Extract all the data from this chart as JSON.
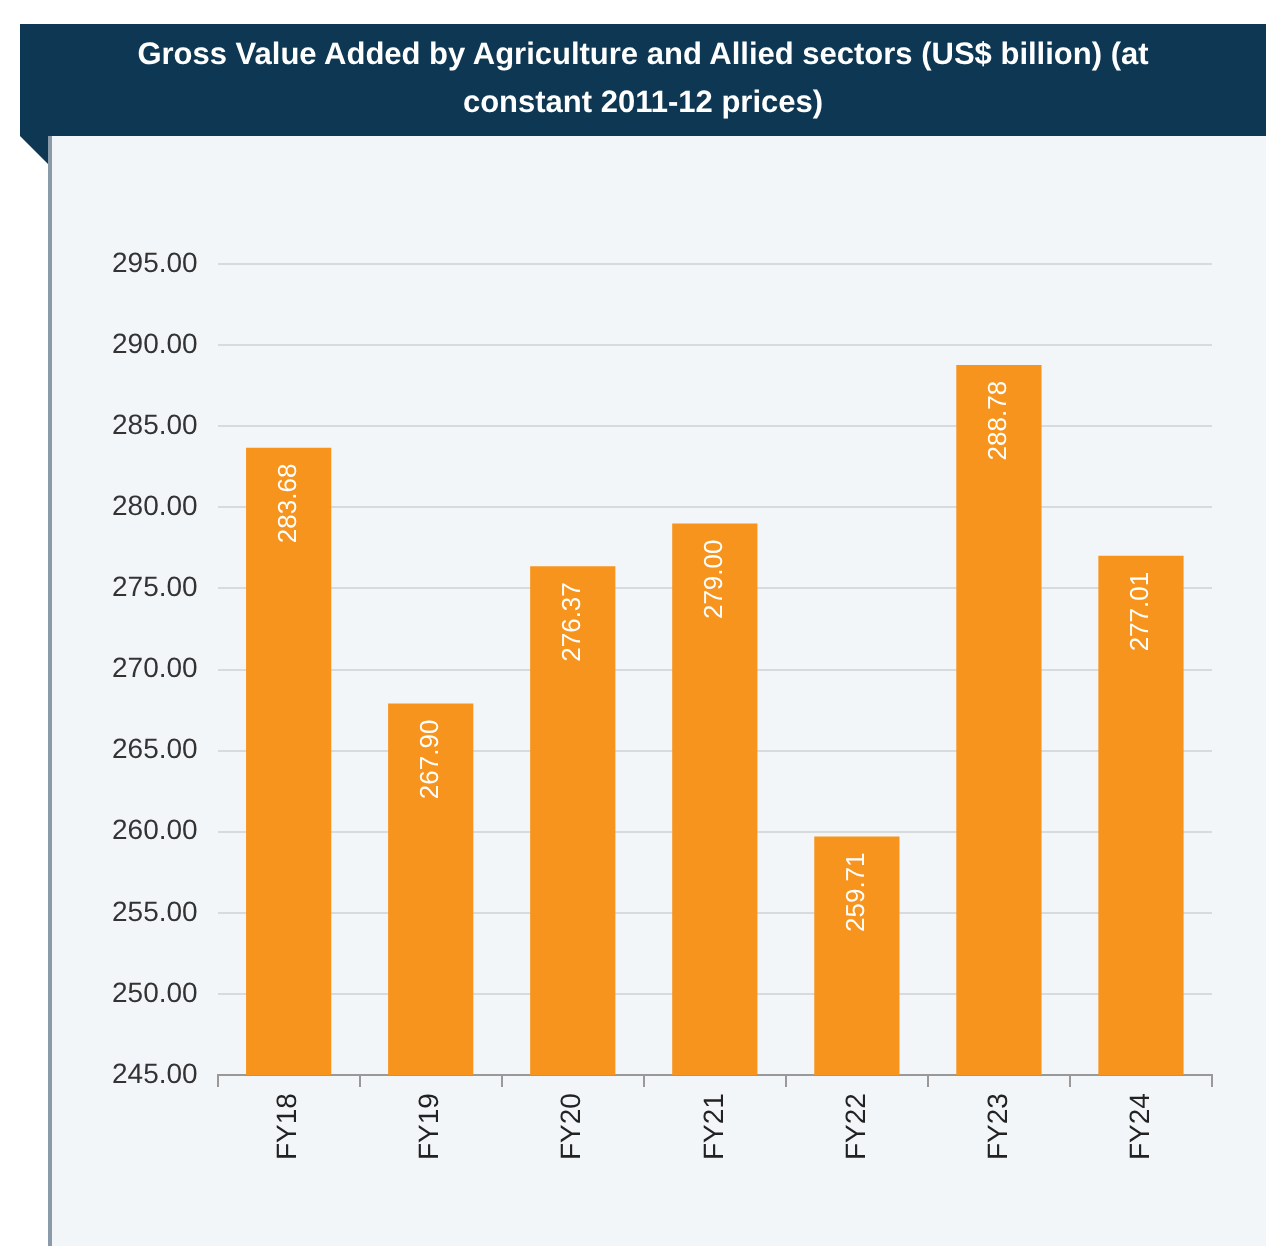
{
  "chart_data": {
    "type": "bar",
    "title": "Gross Value Added by Agriculture and Allied sectors (US$ billion) (at constant 2011-12 prices)",
    "categories": [
      "FY18",
      "FY19",
      "FY20",
      "FY21",
      "FY22",
      "FY23",
      "FY24"
    ],
    "values": [
      283.68,
      267.9,
      276.37,
      279.0,
      259.71,
      288.78,
      277.01
    ],
    "value_labels": [
      "283.68",
      "267.90",
      "276.37",
      "279.00",
      "259.71",
      "288.78",
      "277.01"
    ],
    "color": "#f7941d",
    "ylim": [
      245,
      295
    ],
    "yticks": [
      {
        "value": 245,
        "label": "245.00"
      },
      {
        "value": 250,
        "label": "250.00"
      },
      {
        "value": 255,
        "label": "255.00"
      },
      {
        "value": 260,
        "label": "260.00"
      },
      {
        "value": 265,
        "label": "265.00"
      },
      {
        "value": 270,
        "label": "270.00"
      },
      {
        "value": 275,
        "label": "275.00"
      },
      {
        "value": 280,
        "label": "280.00"
      },
      {
        "value": 285,
        "label": "285.00"
      },
      {
        "value": 290,
        "label": "290.00"
      },
      {
        "value": 295,
        "label": "295.00"
      }
    ],
    "grid": "y"
  }
}
